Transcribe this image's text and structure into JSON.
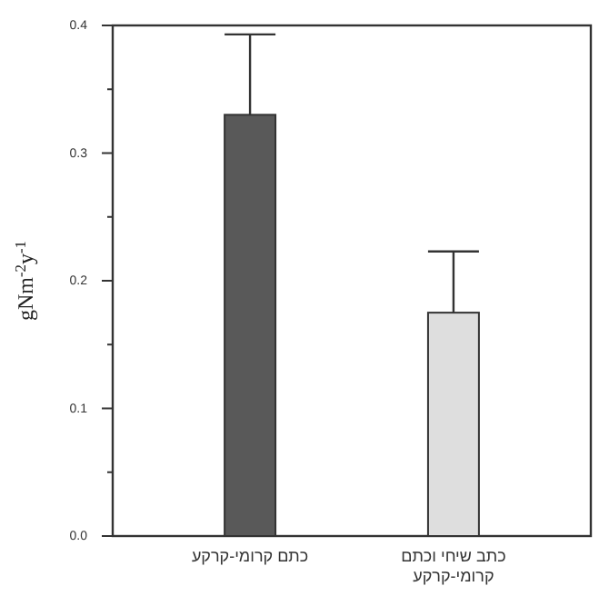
{
  "chart_data": {
    "type": "bar",
    "ylabel": "gNm$^{-2}$y$^{-1}$",
    "categories": [
      "כתם קרומי-קרקע",
      "כתב שיחי וכתם\nקרומי-קרקע"
    ],
    "values": [
      0.33,
      0.175
    ],
    "colors": [
      "#595959",
      "#dedede"
    ],
    "errors": [
      [
        0.33,
        0.393
      ],
      [
        0.175,
        0.223
      ]
    ],
    "ylim": [
      0,
      0.4
    ],
    "yticks": [
      {
        "value": 0,
        "label": "0.0"
      },
      {
        "value": 0.05,
        "label": null
      },
      {
        "value": 0.1,
        "label": "0.1"
      },
      {
        "value": 0.15,
        "label": null
      },
      {
        "value": 0.2,
        "label": "0.2"
      },
      {
        "value": 0.25,
        "label": null
      },
      {
        "value": 0.3,
        "label": "0.3"
      },
      {
        "value": 0.35,
        "label": null
      },
      {
        "value": 0.4,
        "label": "0.4"
      }
    ]
  }
}
